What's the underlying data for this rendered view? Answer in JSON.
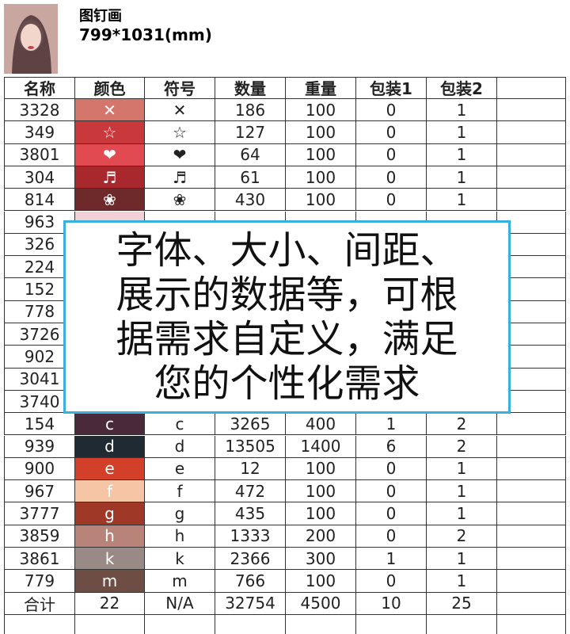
{
  "header": {
    "title": "图钉画",
    "size": "799*1031(mm)"
  },
  "table": {
    "columns": [
      "名称",
      "颜色",
      "符号",
      "数量",
      "重量",
      "包装1",
      "包装2"
    ],
    "rows": [
      {
        "name": "3328",
        "color": "#d4766c",
        "symbol": "✕",
        "cells": [
          186,
          100,
          0,
          1
        ]
      },
      {
        "name": "349",
        "color": "#c9383a",
        "symbol": "☆",
        "cells": [
          127,
          100,
          0,
          1
        ]
      },
      {
        "name": "3801",
        "color": "#e04a50",
        "symbol": "❤",
        "cells": [
          64,
          100,
          0,
          1
        ]
      },
      {
        "name": "304",
        "color": "#a8282e",
        "symbol": "♬",
        "cells": [
          61,
          100,
          0,
          1
        ]
      },
      {
        "name": "814",
        "color": "#6e2a2a",
        "symbol": "❀",
        "cells": [
          430,
          100,
          0,
          1
        ]
      },
      {
        "name": "963",
        "color": "#f2d0d6",
        "symbol": null,
        "cells": [
          null,
          null,
          null,
          null
        ]
      },
      {
        "name": "326",
        "color": null,
        "symbol": null,
        "cells": [
          null,
          null,
          null,
          null
        ]
      },
      {
        "name": "224",
        "color": null,
        "symbol": null,
        "cells": [
          null,
          null,
          null,
          null
        ]
      },
      {
        "name": "152",
        "color": null,
        "symbol": null,
        "cells": [
          null,
          null,
          null,
          null
        ]
      },
      {
        "name": "778",
        "color": null,
        "symbol": null,
        "cells": [
          null,
          null,
          null,
          null
        ]
      },
      {
        "name": "3726",
        "color": null,
        "symbol": null,
        "cells": [
          null,
          null,
          null,
          null
        ]
      },
      {
        "name": "902",
        "color": null,
        "symbol": null,
        "cells": [
          null,
          null,
          null,
          null
        ]
      },
      {
        "name": "3041",
        "color": null,
        "symbol": null,
        "cells": [
          null,
          null,
          null,
          null
        ]
      },
      {
        "name": "3740",
        "color": null,
        "symbol": null,
        "cells": [
          null,
          null,
          null,
          null
        ]
      },
      {
        "name": "154",
        "color": "#4a2a3a",
        "symbol": "c",
        "cells": [
          3265,
          400,
          1,
          2
        ]
      },
      {
        "name": "939",
        "color": "#1f2a33",
        "symbol": "d",
        "cells": [
          13505,
          1400,
          6,
          2
        ]
      },
      {
        "name": "900",
        "color": "#d2402a",
        "symbol": "e",
        "cells": [
          12,
          100,
          0,
          1
        ]
      },
      {
        "name": "967",
        "color": "#f5c5a5",
        "symbol": "f",
        "cells": [
          472,
          100,
          0,
          1
        ]
      },
      {
        "name": "3777",
        "color": "#a03828",
        "symbol": "g",
        "cells": [
          435,
          100,
          0,
          1
        ]
      },
      {
        "name": "3859",
        "color": "#b8847a",
        "symbol": "h",
        "cells": [
          1333,
          200,
          0,
          2
        ]
      },
      {
        "name": "3861",
        "color": "#9a8a86",
        "symbol": "k",
        "cells": [
          2366,
          300,
          1,
          1
        ]
      },
      {
        "name": "779",
        "color": "#6e4e44",
        "symbol": "m",
        "cells": [
          766,
          100,
          0,
          1
        ]
      }
    ],
    "totals": [
      "合计",
      22,
      "N/A",
      32754,
      4500,
      10,
      25
    ]
  },
  "notice": {
    "lines": [
      "字体、大小、间距、",
      "展示的数据等，可根",
      "据需求自定义，满足",
      "您的个性化需求"
    ]
  }
}
